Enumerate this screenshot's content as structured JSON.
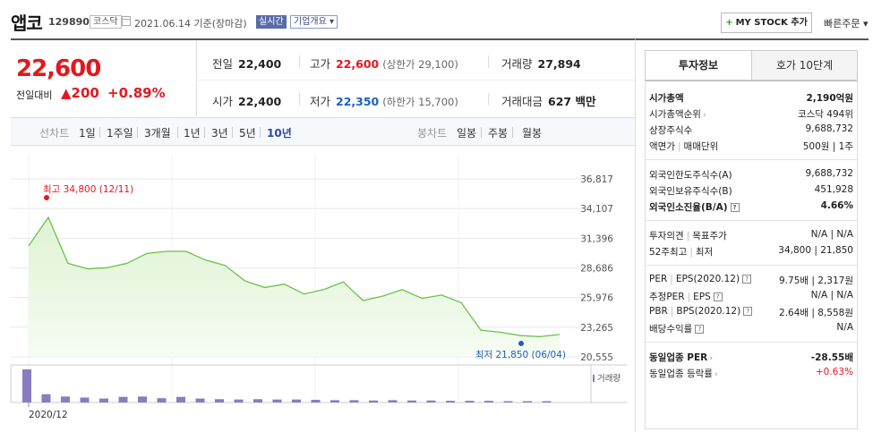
{
  "header": {
    "name": "앱코",
    "code": "129890",
    "market": "코스닥",
    "date": "2021.06.14 기준(장마감)",
    "realtime": "실시간",
    "corp_overview": "기업개요 ▾",
    "mystock_plus": "+",
    "mystock": "MY STOCK 추가",
    "quick_order": "빠른주문 ▾"
  },
  "price": {
    "current": "22,600",
    "prev_label": "전일대비",
    "change": "▲200",
    "percent": "+0.89%"
  },
  "stats": {
    "prev_close_label": "전일",
    "prev_close": "22,400",
    "high_label": "고가",
    "high": "22,600",
    "upper_limit": "(상한가 29,100)",
    "volume_label": "거래량",
    "volume": "27,894",
    "open_label": "시가",
    "open": "22,400",
    "low_label": "저가",
    "low": "22,350",
    "lower_limit": "(하한가 15,700)",
    "amount_label": "거래대금",
    "amount": "627 백만"
  },
  "period_bar": {
    "line_label": "선차트",
    "periods": [
      "1일",
      "1주일",
      "3개월",
      "1년",
      "3년",
      "5년",
      "10년"
    ],
    "selected": "10년",
    "candle_label": "봉차트",
    "candles": [
      "일봉",
      "주봉",
      "월봉"
    ]
  },
  "chart_data": {
    "type": "area",
    "y_ticks": [
      "36,817",
      "34,107",
      "31,396",
      "28,686",
      "25,976",
      "23,265",
      "20,555"
    ],
    "ylim": [
      20555,
      36817
    ],
    "x_tick_label": "2020/12",
    "high_annotation": "최고 34,800 (12/11)",
    "low_annotation": "최저 21,850 (06/04)",
    "volume_legend": "거래량",
    "price_values": [
      30700,
      33300,
      29100,
      28600,
      28700,
      29100,
      30000,
      30200,
      30200,
      29400,
      28900,
      27500,
      26900,
      27200,
      26300,
      26700,
      27400,
      25700,
      26100,
      26700,
      25900,
      26200,
      25500,
      23000,
      22800,
      22500,
      22400,
      22600
    ],
    "volume_values": [
      100,
      25,
      18,
      15,
      12,
      17,
      18,
      13,
      17,
      12,
      10,
      9,
      10,
      9,
      9,
      8,
      7,
      7,
      6,
      7,
      6,
      6,
      5,
      5,
      5,
      4,
      4,
      4
    ],
    "grid": true,
    "colors": {
      "line": "#69c24b",
      "fill_top": "#dff3d3",
      "fill_bottom": "#f6fcf2",
      "volume": "#8b7bc0",
      "high": "#e5171e",
      "low": "#1e5fc0"
    }
  },
  "invest": {
    "tab_active": "투자정보",
    "tab_inactive": "호가 10단계",
    "market_cap_label": "시가총액",
    "market_cap": "2,190억원",
    "market_cap_rank_label": "시가총액순위",
    "market_cap_rank": "코스닥 494위",
    "shares_label": "상장주식수",
    "shares": "9,688,732",
    "par_label": "액면가",
    "unit_label": "매매단위",
    "par_unit": "500원 | 1주",
    "foreign_limit_label": "외국인한도주식수(A)",
    "foreign_limit": "9,688,732",
    "foreign_hold_label": "외국인보유주식수(B)",
    "foreign_hold": "451,928",
    "foreign_ratio_label": "외국인소진율(B/A)",
    "foreign_ratio": "4.66%",
    "opinion_label": "투자의견",
    "target_label": "목표주가",
    "opinion_target": "N/A | N/A",
    "w52_high_label": "52주최고",
    "w52_low_label": "최저",
    "w52": "34,800 | 21,850",
    "per_label": "PER",
    "eps_label": "EPS(2020.12)",
    "per_eps": "9.75배 | 2,317원",
    "est_per_label": "추정PER",
    "est_eps_label": "EPS",
    "est_per_eps": "N/A | N/A",
    "pbr_label": "PBR",
    "bps_label": "BPS(2020.12)",
    "pbr_bps": "2.64배 | 8,558원",
    "div_label": "배당수익률",
    "div": "N/A",
    "sector_per_label": "동일업종 PER",
    "sector_per": "-28.55배",
    "sector_rate_label": "동일업종 등락률",
    "sector_rate": "+0.63%"
  }
}
